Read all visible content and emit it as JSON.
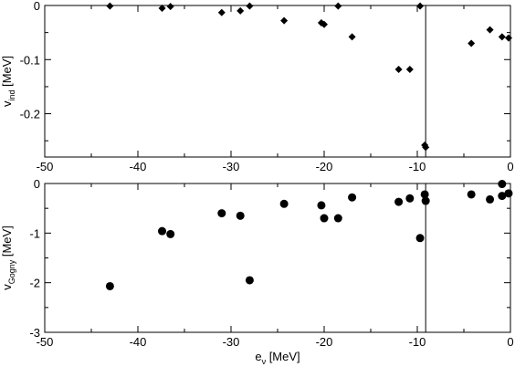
{
  "chart_data": [
    {
      "type": "scatter",
      "marker": "diamond",
      "xlabel": "",
      "ylabel": {
        "main": "v",
        "sub": "ind",
        "unit": " [MeV]"
      },
      "xlim": [
        -50,
        0
      ],
      "ylim": [
        -0.28,
        0
      ],
      "xticks": [
        -50,
        -40,
        -30,
        -20,
        -10,
        0
      ],
      "xtick_labels": [
        "-50",
        "-40",
        "-30",
        "-20",
        "-10",
        "0"
      ],
      "yticks": [
        0,
        -0.1,
        -0.2
      ],
      "ytick_labels": [
        "0",
        "-0.1",
        "-0.2"
      ],
      "vline_x": -9.1,
      "grid": false,
      "series": [
        {
          "x": [
            -43,
            -37.4,
            -36.5,
            -31,
            -29,
            -28,
            -24.3,
            -20.3,
            -20,
            -18.5,
            -17,
            -12,
            -10.8,
            -9.7,
            -9.2,
            -9.1,
            -4.2,
            -2.2,
            -0.9,
            -0.2
          ],
          "y": [
            -0.001,
            -0.005,
            -0.002,
            -0.013,
            -0.01,
            -0.001,
            -0.028,
            -0.032,
            -0.035,
            -0.001,
            -0.058,
            -0.118,
            -0.118,
            -0.001,
            -0.258,
            -0.262,
            -0.07,
            -0.045,
            -0.058,
            -0.06
          ]
        }
      ]
    },
    {
      "type": "scatter",
      "marker": "circle",
      "xlabel": {
        "main": "e",
        "sub": "ν",
        "unit": " [MeV]"
      },
      "ylabel": {
        "main": "v",
        "sub": "Gogny",
        "unit": " [MeV]"
      },
      "xlim": [
        -50,
        0
      ],
      "ylim": [
        -3,
        0
      ],
      "xticks": [
        -50,
        -40,
        -30,
        -20,
        -10,
        0
      ],
      "xtick_labels": [
        "-50",
        "-40",
        "-30",
        "-20",
        "-10",
        "0"
      ],
      "yticks": [
        0,
        -1,
        -2,
        -3
      ],
      "ytick_labels": [
        "0",
        "-1",
        "-2",
        "-3"
      ],
      "vline_x": -9.1,
      "grid": false,
      "series": [
        {
          "x": [
            -43,
            -37.4,
            -36.5,
            -31,
            -29,
            -28,
            -24.3,
            -20.3,
            -20,
            -18.5,
            -17,
            -12,
            -10.8,
            -9.7,
            -9.2,
            -9.1,
            -4.2,
            -2.2,
            -0.9,
            -0.9,
            -0.2
          ],
          "y": [
            -2.07,
            -0.96,
            -1.02,
            -0.6,
            -0.65,
            -1.95,
            -0.41,
            -0.44,
            -0.7,
            -0.7,
            -0.28,
            -0.37,
            -0.3,
            -1.1,
            -0.22,
            -0.35,
            -0.22,
            -0.32,
            -0.01,
            -0.25,
            -0.2
          ]
        }
      ]
    }
  ]
}
